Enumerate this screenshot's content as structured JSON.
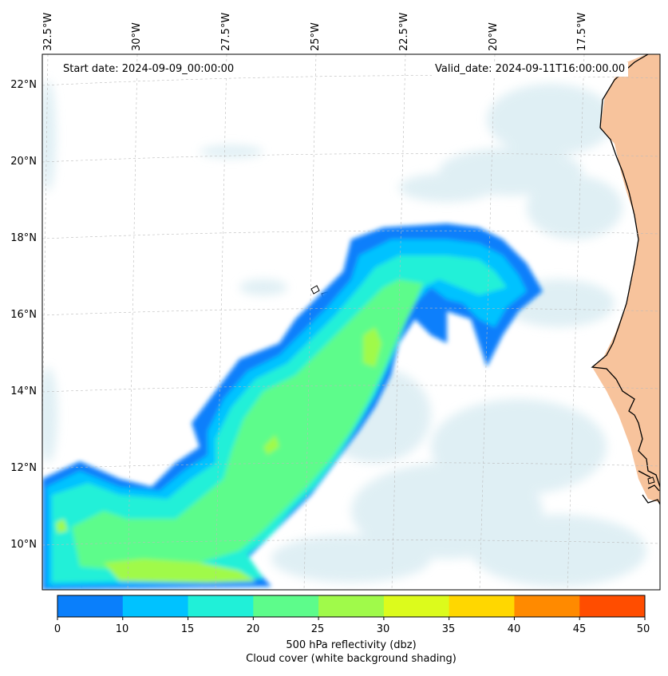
{
  "header": {
    "start_date": "Start date: 2024-09-09_00:00:00",
    "valid_date": "Valid_date: 2024-09-11T16:00:00.00"
  },
  "axes": {
    "longitude_labels": [
      "32.5°W",
      "30°W",
      "27.5°W",
      "25°W",
      "22.5°W",
      "20°W",
      "17.5°W"
    ],
    "latitude_labels": [
      "22°N",
      "20°N",
      "18°N",
      "16°N",
      "14°N",
      "12°N",
      "10°N"
    ]
  },
  "colorbar": {
    "ticks": [
      "0",
      "10",
      "15",
      "20",
      "25",
      "30",
      "35",
      "40",
      "45",
      "50"
    ],
    "colors": [
      "#0a7ffb",
      "#00c2ff",
      "#20f0d8",
      "#5dfc8b",
      "#a0fa4a",
      "#dcfb1c",
      "#ffd700",
      "#ff8a00",
      "#ff4d00"
    ],
    "label_line1": "500 hPa reflectivity (dbz)",
    "label_line2": "Cloud cover (white background shading)"
  },
  "map": {
    "land_color": "#f7c39c",
    "cloud_color": "#d5eaf1",
    "coast_color": "#000000"
  }
}
